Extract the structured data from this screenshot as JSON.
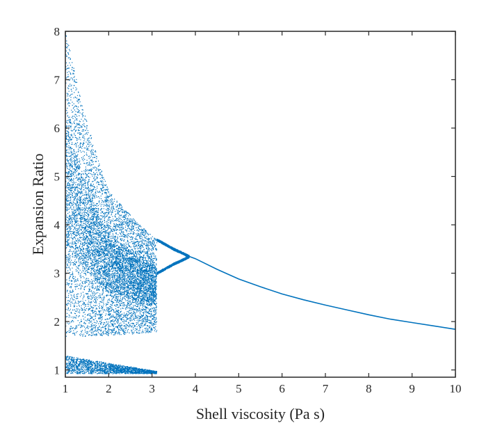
{
  "chart_data": {
    "type": "scatter",
    "title": "",
    "xlabel": "Shell viscosity (Pa s)",
    "ylabel": "Expansion Ratio",
    "xlim": [
      1,
      10
    ],
    "ylim": [
      0.85,
      8
    ],
    "x_ticks": [
      1,
      2,
      3,
      4,
      5,
      6,
      7,
      8,
      9,
      10
    ],
    "y_ticks": [
      1,
      2,
      3,
      4,
      5,
      6,
      7,
      8
    ],
    "x_tick_labels": [
      "1",
      "2",
      "3",
      "4",
      "5",
      "6",
      "7",
      "8",
      "9",
      "10"
    ],
    "y_tick_labels": [
      "1",
      "2",
      "3",
      "4",
      "5",
      "6",
      "7",
      "8"
    ],
    "grid": false,
    "box": true,
    "marker_color": "#0072BD",
    "axis_color": "#262626",
    "description": "bifurcation diagram",
    "chaotic_region": {
      "x_range": [
        1,
        3.1
      ],
      "upper_envelope": [
        [
          1.0,
          8.0
        ],
        [
          1.2,
          7.2
        ],
        [
          1.4,
          6.4
        ],
        [
          1.6,
          5.8
        ],
        [
          1.8,
          5.2
        ],
        [
          2.0,
          4.7
        ],
        [
          2.3,
          4.4
        ],
        [
          2.6,
          4.1
        ],
        [
          2.9,
          3.85
        ],
        [
          3.1,
          3.7
        ]
      ],
      "lower_envelope": [
        [
          1.0,
          1.7
        ],
        [
          1.5,
          1.7
        ],
        [
          2.0,
          1.72
        ],
        [
          2.5,
          1.75
        ],
        [
          3.0,
          1.78
        ],
        [
          3.1,
          1.8
        ]
      ],
      "lower_island": {
        "x_range": [
          1.0,
          3.1
        ],
        "y_top": [
          [
            1.0,
            1.3
          ],
          [
            3.1,
            0.98
          ]
        ],
        "y_bottom": 0.93
      }
    },
    "period_doubling_region": {
      "x_range": [
        3.1,
        3.85
      ],
      "upper_branch": [
        [
          3.1,
          3.7
        ],
        [
          3.3,
          3.6
        ],
        [
          3.5,
          3.5
        ],
        [
          3.7,
          3.42
        ],
        [
          3.85,
          3.35
        ]
      ],
      "lower_branch": [
        [
          3.1,
          3.0
        ],
        [
          3.3,
          3.1
        ],
        [
          3.5,
          3.2
        ],
        [
          3.7,
          3.28
        ],
        [
          3.85,
          3.35
        ]
      ]
    },
    "stable_branch": {
      "x": [
        3.85,
        4.0,
        4.5,
        5.0,
        5.5,
        6.0,
        6.5,
        7.0,
        7.5,
        8.0,
        8.5,
        9.0,
        9.5,
        10.0
      ],
      "y": [
        3.35,
        3.3,
        3.08,
        2.88,
        2.72,
        2.57,
        2.45,
        2.34,
        2.24,
        2.14,
        2.05,
        1.98,
        1.91,
        1.84
      ]
    }
  }
}
